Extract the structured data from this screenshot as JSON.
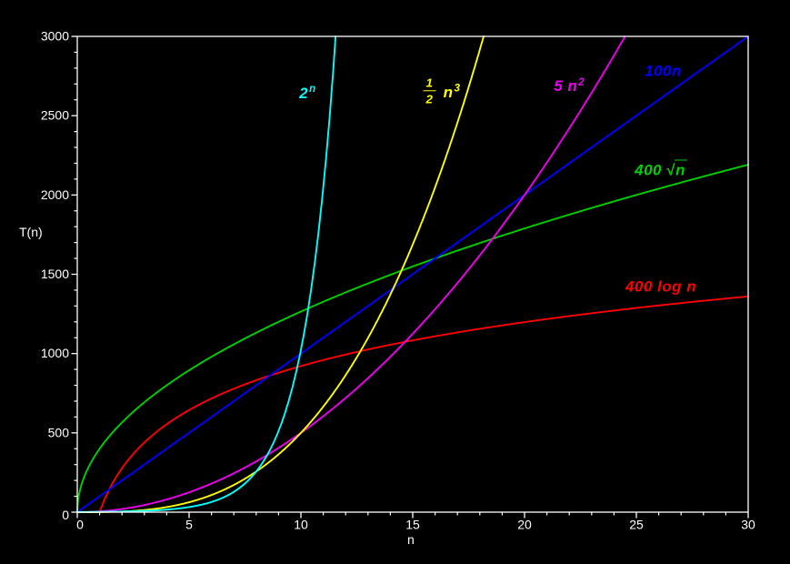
{
  "chart_data": {
    "type": "line",
    "title": "",
    "background_color": "#000000",
    "axis_color": "#ffffff",
    "xlabel": "n",
    "ylabel": "T(n)",
    "xlim": [
      0,
      30
    ],
    "ylim": [
      0,
      3000
    ],
    "grid": false,
    "legend_position": "inline-labels-on-curves",
    "x_axis": {
      "major_ticks": [
        0,
        5,
        10,
        15,
        20,
        25,
        30
      ],
      "minor_step": 1
    },
    "y_axis": {
      "major_ticks": [
        0,
        500,
        1000,
        1500,
        2000,
        2500,
        3000
      ],
      "minor_step": 100
    },
    "series": [
      {
        "id": "exp2",
        "name": "2^n",
        "color": "#00ffff",
        "formula": {
          "fn": "exp",
          "base": 2
        },
        "label_parts": [
          {
            "text": "2"
          },
          {
            "sup": "n"
          }
        ],
        "label_anchor": {
          "n": 10.3,
          "T": 2640
        },
        "points": {
          "n": [
            0,
            1,
            2,
            3,
            4,
            5,
            6,
            7,
            8,
            9,
            10,
            11
          ],
          "T": [
            1,
            2,
            4,
            8,
            16,
            32,
            64,
            128,
            256,
            512,
            1024,
            2048
          ]
        }
      },
      {
        "id": "half-cube",
        "name": "(1/2) n^3",
        "color": "#ffff00",
        "formula": {
          "fn": "poly",
          "coef": 0.5,
          "power": 3
        },
        "label_parts": [
          {
            "frac": {
              "num": "1",
              "den": "2"
            }
          },
          {
            "text": " n"
          },
          {
            "sup": "3"
          }
        ],
        "label_anchor": {
          "n": 16.3,
          "T": 2655
        },
        "points": {
          "n": [
            0,
            1,
            2,
            3,
            4,
            5,
            6,
            7,
            8,
            9,
            10,
            11,
            12,
            13,
            14,
            15,
            16,
            17,
            18
          ],
          "T": [
            0,
            0.5,
            4,
            13.5,
            32,
            62.5,
            108,
            171.5,
            256,
            364.5,
            500,
            665.5,
            864,
            1098.5,
            1372,
            1687.5,
            2048,
            2456.5,
            2916
          ]
        }
      },
      {
        "id": "5n2",
        "name": "5 n^2",
        "color": "#ee00ee",
        "formula": {
          "fn": "poly",
          "coef": 5,
          "power": 2
        },
        "label_parts": [
          {
            "text": "5 n"
          },
          {
            "sup": "2"
          }
        ],
        "label_anchor": {
          "n": 22.0,
          "T": 2685
        },
        "points": {
          "n": [
            0,
            1,
            2,
            3,
            4,
            5,
            6,
            7,
            8,
            9,
            10,
            11,
            12,
            13,
            14,
            15,
            16,
            17,
            18,
            19,
            20,
            21,
            22,
            23,
            24
          ],
          "T": [
            0,
            5,
            20,
            45,
            80,
            125,
            180,
            245,
            320,
            405,
            500,
            605,
            720,
            845,
            980,
            1125,
            1280,
            1445,
            1620,
            1805,
            2000,
            2205,
            2420,
            2645,
            2880
          ]
        }
      },
      {
        "id": "100n",
        "name": "100n",
        "color": "#0000ff",
        "formula": {
          "fn": "poly",
          "coef": 100,
          "power": 1
        },
        "label_parts": [
          {
            "text": "100n"
          }
        ],
        "label_anchor": {
          "n": 26.2,
          "T": 2782
        },
        "points": {
          "n": [
            0,
            1,
            2,
            3,
            4,
            5,
            6,
            7,
            8,
            9,
            10,
            11,
            12,
            13,
            14,
            15,
            16,
            17,
            18,
            19,
            20,
            21,
            22,
            23,
            24,
            25,
            26,
            27,
            28,
            29,
            30
          ],
          "T": [
            0,
            100,
            200,
            300,
            400,
            500,
            600,
            700,
            800,
            900,
            1000,
            1100,
            1200,
            1300,
            1400,
            1500,
            1600,
            1700,
            1800,
            1900,
            2000,
            2100,
            2200,
            2300,
            2400,
            2500,
            2600,
            2700,
            2800,
            2900,
            3000
          ]
        }
      },
      {
        "id": "400sqrtn",
        "name": "400 sqrt(n)",
        "color": "#00d000",
        "formula": {
          "fn": "poly",
          "coef": 400,
          "power": 0.5
        },
        "label_parts": [
          {
            "text": "400 "
          },
          {
            "sqrt": "n"
          }
        ],
        "label_anchor": {
          "n": 26.1,
          "T": 2157
        },
        "points": {
          "n": [
            0,
            1,
            2,
            3,
            4,
            5,
            6,
            7,
            8,
            9,
            10,
            11,
            12,
            13,
            14,
            15,
            16,
            17,
            18,
            19,
            20,
            21,
            22,
            23,
            24,
            25,
            26,
            27,
            28,
            29,
            30
          ],
          "T": [
            0,
            400,
            566,
            693,
            800,
            894,
            980,
            1058,
            1131,
            1200,
            1265,
            1327,
            1386,
            1442,
            1497,
            1549,
            1600,
            1649,
            1697,
            1744,
            1789,
            1833,
            1876,
            1918,
            1960,
            2000,
            2040,
            2078,
            2117,
            2154,
            2191
          ]
        }
      },
      {
        "id": "400logn",
        "name": "400 log n",
        "color": "#ff0000",
        "formula": {
          "fn": "log",
          "coef": 400
        },
        "label_parts": [
          {
            "text": "400 log n"
          }
        ],
        "label_anchor": {
          "n": 26.1,
          "T": 1423
        },
        "points": {
          "n": [
            1,
            2,
            3,
            4,
            5,
            6,
            7,
            8,
            9,
            10,
            11,
            12,
            13,
            14,
            15,
            16,
            17,
            18,
            19,
            20,
            21,
            22,
            23,
            24,
            25,
            26,
            27,
            28,
            29,
            30
          ],
          "T": [
            0,
            277,
            439,
            555,
            644,
            717,
            778,
            832,
            879,
            921,
            959,
            994,
            1026,
            1056,
            1083,
            1109,
            1133,
            1156,
            1178,
            1198,
            1218,
            1236,
            1254,
            1271,
            1288,
            1303,
            1318,
            1333,
            1347,
            1360
          ]
        }
      }
    ]
  }
}
